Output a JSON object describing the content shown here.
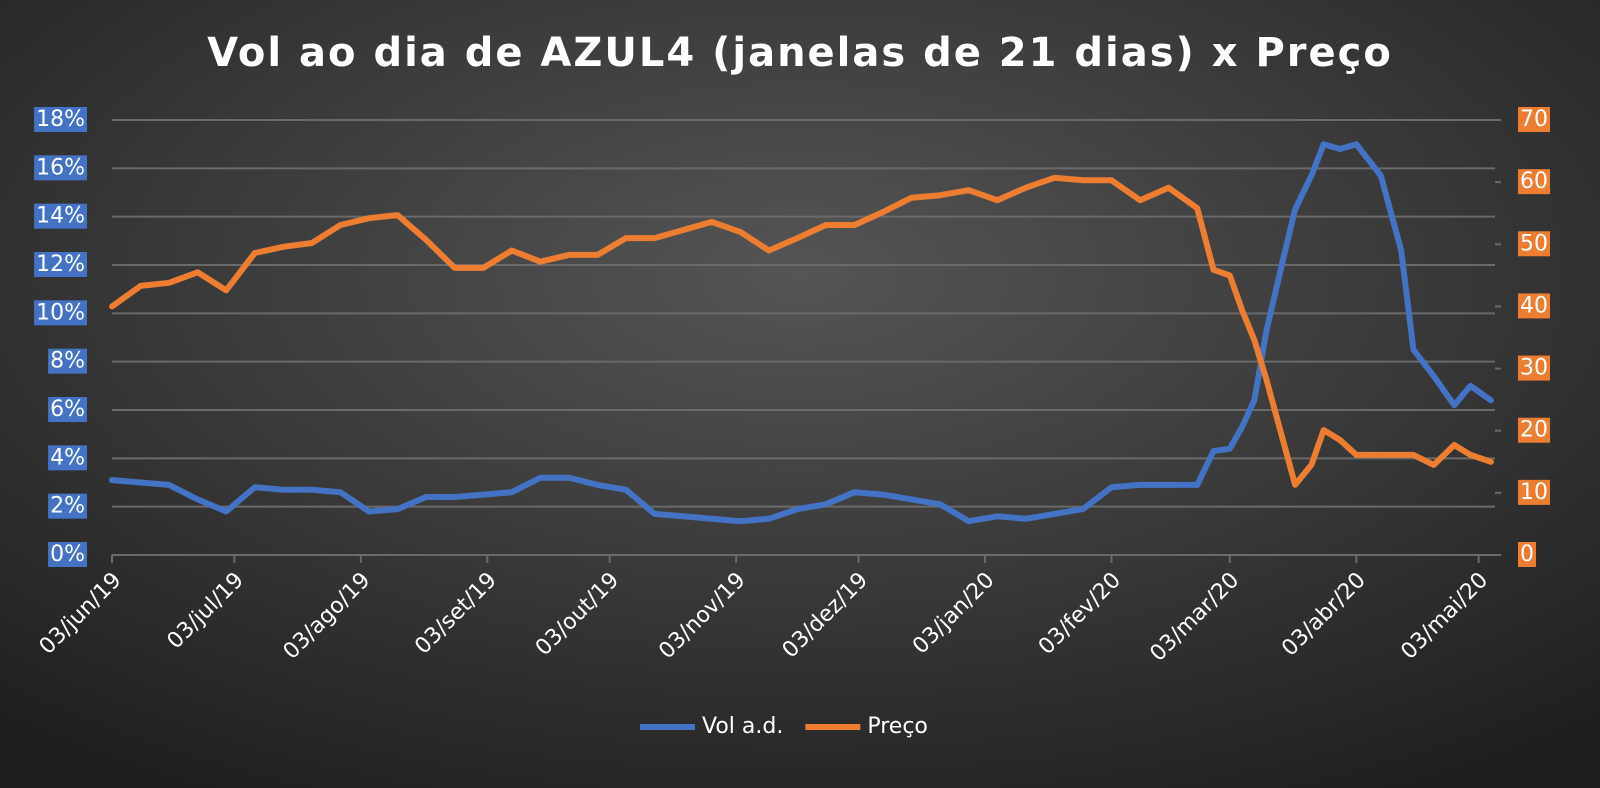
{
  "chart_data": {
    "type": "line",
    "title": "Vol ao dia de AZUL4 (janelas de 21 dias) x Preço",
    "x": [
      "2019-06-03",
      "2019-06-10",
      "2019-06-17",
      "2019-06-24",
      "2019-07-01",
      "2019-07-08",
      "2019-07-15",
      "2019-07-22",
      "2019-07-29",
      "2019-08-05",
      "2019-08-12",
      "2019-08-19",
      "2019-08-26",
      "2019-09-02",
      "2019-09-09",
      "2019-09-16",
      "2019-09-23",
      "2019-09-30",
      "2019-10-07",
      "2019-10-14",
      "2019-10-21",
      "2019-10-28",
      "2019-11-04",
      "2019-11-11",
      "2019-11-18",
      "2019-11-25",
      "2019-12-02",
      "2019-12-09",
      "2019-12-16",
      "2019-12-23",
      "2019-12-30",
      "2020-01-06",
      "2020-01-13",
      "2020-01-20",
      "2020-01-27",
      "2020-02-03",
      "2020-02-10",
      "2020-02-17",
      "2020-02-24",
      "2020-02-28",
      "2020-03-03",
      "2020-03-06",
      "2020-03-09",
      "2020-03-12",
      "2020-03-16",
      "2020-03-19",
      "2020-03-23",
      "2020-03-26",
      "2020-03-30",
      "2020-04-03",
      "2020-04-09",
      "2020-04-14",
      "2020-04-17",
      "2020-04-22",
      "2020-04-27",
      "2020-05-01",
      "2020-05-06"
    ],
    "series": [
      {
        "name": "Vol a.d.",
        "color": "#4472c4",
        "values": [
          3.1,
          3.0,
          2.9,
          2.3,
          1.8,
          2.8,
          2.7,
          2.7,
          2.6,
          1.8,
          1.9,
          2.4,
          2.4,
          2.5,
          2.6,
          3.2,
          3.2,
          2.9,
          2.7,
          1.7,
          1.6,
          1.5,
          1.4,
          1.5,
          1.9,
          2.1,
          2.6,
          2.5,
          2.3,
          2.1,
          1.4,
          1.6,
          1.5,
          1.7,
          1.9,
          2.8,
          2.9,
          2.9,
          2.9,
          4.3,
          4.4,
          5.3,
          6.4,
          9.3,
          12.2,
          14.3,
          15.7,
          17.0,
          16.8,
          17.0,
          15.7,
          12.6,
          8.5,
          7.4,
          6.2,
          7.0,
          6.4
        ]
      },
      {
        "name": "Preço",
        "color": "#ed7d31",
        "axis": "y2",
        "values": [
          40,
          43.3,
          43.8,
          45.5,
          42.6,
          48.6,
          49.6,
          50.2,
          53.1,
          54.2,
          54.7,
          50.7,
          46.2,
          46.2,
          49,
          47.2,
          48.3,
          48.3,
          51,
          51,
          52.3,
          53.6,
          52,
          49,
          51,
          53.1,
          53.1,
          55.2,
          57.5,
          57.9,
          58.7,
          57.1,
          59.1,
          60.7,
          60.3,
          60.3,
          57.1,
          59.1,
          55.8,
          45.9,
          45,
          39.4,
          34.6,
          28.2,
          18.5,
          11.3,
          14.5,
          20.1,
          18.5,
          16.1,
          16.1,
          16.1,
          16.1,
          14.5,
          17.7,
          16.1,
          15
        ]
      }
    ],
    "xlim": [
      "2019-06-03",
      "2020-05-07"
    ],
    "xticks": [
      {
        "value": "2019-06-03",
        "label": "03/jun/19"
      },
      {
        "value": "2019-07-03",
        "label": "03/jul/19"
      },
      {
        "value": "2019-08-03",
        "label": "03/ago/19"
      },
      {
        "value": "2019-09-03",
        "label": "03/set/19"
      },
      {
        "value": "2019-10-03",
        "label": "03/out/19"
      },
      {
        "value": "2019-11-03",
        "label": "03/nov/19"
      },
      {
        "value": "2019-12-03",
        "label": "03/dez/19"
      },
      {
        "value": "2020-01-03",
        "label": "03/jan/20"
      },
      {
        "value": "2020-02-03",
        "label": "03/fev/20"
      },
      {
        "value": "2020-03-03",
        "label": "03/mar/20"
      },
      {
        "value": "2020-04-03",
        "label": "03/abr/20"
      },
      {
        "value": "2020-05-03",
        "label": "03/mai/20"
      }
    ],
    "ylim": [
      0,
      18
    ],
    "yticks": [
      {
        "value": 0,
        "label": "0%"
      },
      {
        "value": 2,
        "label": "2%"
      },
      {
        "value": 4,
        "label": "4%"
      },
      {
        "value": 6,
        "label": "6%"
      },
      {
        "value": 8,
        "label": "8%"
      },
      {
        "value": 10,
        "label": "10%"
      },
      {
        "value": 12,
        "label": "12%"
      },
      {
        "value": 14,
        "label": "14%"
      },
      {
        "value": 16,
        "label": "16%"
      },
      {
        "value": 18,
        "label": "18%"
      }
    ],
    "y2lim": [
      0,
      70
    ],
    "y2ticks": [
      0,
      10,
      20,
      30,
      40,
      50,
      60,
      70
    ],
    "grid": true,
    "legend": "bottom"
  }
}
